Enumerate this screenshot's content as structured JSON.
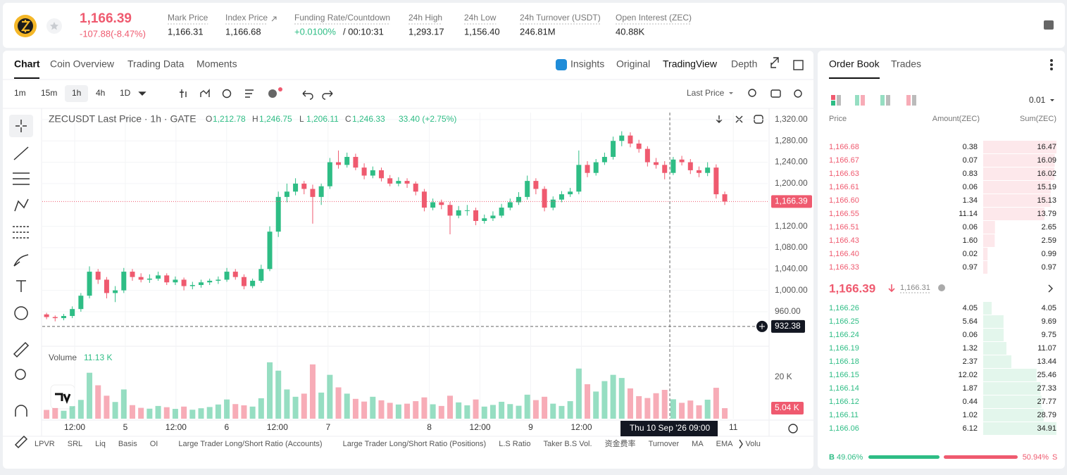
{
  "header": {
    "price": "1,166.39",
    "change": "-107.88(-8.47%)",
    "stats": [
      {
        "label": "Mark Price",
        "value": "1,166.31"
      },
      {
        "label": "Index Price",
        "value": "1,166.68"
      },
      {
        "label": "Funding Rate/Countdown",
        "value": "+0.0100%",
        "extra": "/ 00:10:31"
      },
      {
        "label": "24h High",
        "value": "1,293.17"
      },
      {
        "label": "24h Low",
        "value": "1,156.40"
      },
      {
        "label": "24h Turnover (USDT)",
        "value": "246.81M"
      },
      {
        "label": "Open Interest (ZEC)",
        "value": "40.88K"
      }
    ]
  },
  "tabs": [
    "Chart",
    "Coin Overview",
    "Trading Data",
    "Moments"
  ],
  "views": [
    "Insights",
    "Original",
    "TradingView",
    "Depth"
  ],
  "intervals": [
    "1m",
    "15m",
    "1h",
    "4h",
    "1D"
  ],
  "price_source": "Last Price",
  "legend": {
    "title": "ZECUSDT Last Price · 1h · GATE",
    "o_label": "O",
    "o": "1,212.78",
    "h_label": "H",
    "h": "1,246.75",
    "l_label": "L",
    "l": "1,206.11",
    "c_label": "C",
    "c": "1,246.33",
    "change": "33.40 (+2.75%)"
  },
  "volume_legend": {
    "label": "Volume",
    "value": "11.13 K"
  },
  "indicators": [
    "LPVR",
    "SRL",
    "Liq",
    "Basis",
    "OI",
    "Large Trader Long/Short Ratio (Accounts)",
    "Large Trader Long/Short Ratio (Positions)",
    "L.S Ratio",
    "Taker B.S Vol.",
    "资金费率",
    "Turnover",
    "MA",
    "EMA",
    "Volu"
  ],
  "chart_data": {
    "type": "candlestick",
    "ylim": [
      898,
      1333
    ],
    "yticks": [
      {
        "value": 1320,
        "label": "1,320.00"
      },
      {
        "value": 1280,
        "label": "1,280.00"
      },
      {
        "value": 1240,
        "label": "1,240.00"
      },
      {
        "value": 1200,
        "label": "1,200.00"
      },
      {
        "value": 1120,
        "label": "1,120.00"
      },
      {
        "value": 1080,
        "label": "1,080.00"
      },
      {
        "value": 1040,
        "label": "1,040.00"
      },
      {
        "value": 1000,
        "label": "1,000.00"
      },
      {
        "value": 960,
        "label": "960.00"
      }
    ],
    "xlim": [
      -0.5,
      84
    ],
    "xticks": [
      {
        "value": 3.28,
        "label": "12:00"
      },
      {
        "value": 9.18,
        "label": "5"
      },
      {
        "value": 15.08,
        "label": "12:00"
      },
      {
        "value": 20.98,
        "label": "6"
      },
      {
        "value": 26.89,
        "label": "12:00"
      },
      {
        "value": 32.79,
        "label": "7"
      },
      {
        "value": 44.59,
        "label": "8"
      },
      {
        "value": 50.49,
        "label": "12:00"
      },
      {
        "value": 56.39,
        "label": "9"
      },
      {
        "value": 62.3,
        "label": "12:00"
      },
      {
        "value": 80.0,
        "label": "11"
      }
    ],
    "last_price": {
      "value": 1166.39,
      "label": "1,166.39"
    },
    "crosshair": {
      "x": 72.6,
      "x_label": "Thu 10 Sep '26   09:00",
      "y": 932.38,
      "y_label": "932.38"
    },
    "up_color": "#2ebd85",
    "down_color": "#ef5a6f",
    "candles": [
      [
        955,
        958,
        946,
        950
      ],
      [
        950,
        953,
        942,
        948
      ],
      [
        948,
        956,
        944,
        952
      ],
      [
        952,
        970,
        948,
        965
      ],
      [
        965,
        995,
        960,
        990
      ],
      [
        990,
        1045,
        985,
        1035
      ],
      [
        1035,
        1040,
        1012,
        1020
      ],
      [
        1020,
        1025,
        985,
        995
      ],
      [
        995,
        1008,
        978,
        1000
      ],
      [
        1000,
        1042,
        995,
        1035
      ],
      [
        1035,
        1040,
        1018,
        1025
      ],
      [
        1025,
        1032,
        1015,
        1020
      ],
      [
        1020,
        1030,
        1014,
        1022
      ],
      [
        1022,
        1035,
        1018,
        1028
      ],
      [
        1028,
        1032,
        1010,
        1015
      ],
      [
        1015,
        1026,
        1010,
        1020
      ],
      [
        1020,
        1024,
        1000,
        1008
      ],
      [
        1008,
        1016,
        1002,
        1010
      ],
      [
        1010,
        1020,
        1005,
        1015
      ],
      [
        1015,
        1022,
        1010,
        1018
      ],
      [
        1018,
        1026,
        1012,
        1020
      ],
      [
        1020,
        1042,
        1016,
        1035
      ],
      [
        1035,
        1040,
        1020,
        1025
      ],
      [
        1025,
        1030,
        1002,
        1008
      ],
      [
        1008,
        1022,
        1004,
        1018
      ],
      [
        1018,
        1048,
        1014,
        1040
      ],
      [
        1040,
        1120,
        1036,
        1110
      ],
      [
        1110,
        1185,
        1100,
        1175
      ],
      [
        1175,
        1200,
        1165,
        1185
      ],
      [
        1185,
        1210,
        1178,
        1200
      ],
      [
        1200,
        1205,
        1180,
        1190
      ],
      [
        1190,
        1198,
        1125,
        1175
      ],
      [
        1175,
        1200,
        1160,
        1195
      ],
      [
        1195,
        1248,
        1190,
        1240
      ],
      [
        1240,
        1262,
        1228,
        1235
      ],
      [
        1235,
        1258,
        1230,
        1250
      ],
      [
        1250,
        1256,
        1225,
        1230
      ],
      [
        1230,
        1238,
        1208,
        1215
      ],
      [
        1215,
        1232,
        1210,
        1225
      ],
      [
        1225,
        1230,
        1204,
        1210
      ],
      [
        1210,
        1216,
        1195,
        1200
      ],
      [
        1200,
        1212,
        1195,
        1205
      ],
      [
        1205,
        1210,
        1192,
        1200
      ],
      [
        1200,
        1204,
        1178,
        1185
      ],
      [
        1185,
        1190,
        1148,
        1155
      ],
      [
        1155,
        1172,
        1150,
        1165
      ],
      [
        1165,
        1170,
        1152,
        1160
      ],
      [
        1160,
        1166,
        1105,
        1140
      ],
      [
        1140,
        1158,
        1135,
        1150
      ],
      [
        1150,
        1160,
        1140,
        1150
      ],
      [
        1150,
        1155,
        1122,
        1130
      ],
      [
        1130,
        1142,
        1125,
        1135
      ],
      [
        1135,
        1148,
        1130,
        1140
      ],
      [
        1140,
        1162,
        1136,
        1155
      ],
      [
        1155,
        1172,
        1150,
        1165
      ],
      [
        1165,
        1184,
        1160,
        1175
      ],
      [
        1175,
        1215,
        1170,
        1205
      ],
      [
        1205,
        1210,
        1180,
        1190
      ],
      [
        1190,
        1195,
        1148,
        1155
      ],
      [
        1155,
        1176,
        1150,
        1170
      ],
      [
        1170,
        1186,
        1165,
        1180
      ],
      [
        1180,
        1192,
        1175,
        1185
      ],
      [
        1185,
        1262,
        1180,
        1235
      ],
      [
        1235,
        1242,
        1212,
        1220
      ],
      [
        1220,
        1246,
        1215,
        1240
      ],
      [
        1240,
        1258,
        1235,
        1250
      ],
      [
        1250,
        1288,
        1245,
        1280
      ],
      [
        1280,
        1298,
        1270,
        1290
      ],
      [
        1290,
        1296,
        1268,
        1275
      ],
      [
        1275,
        1282,
        1258,
        1265
      ],
      [
        1265,
        1270,
        1232,
        1240
      ],
      [
        1240,
        1248,
        1228,
        1235
      ],
      [
        1235,
        1242,
        1208,
        1220
      ],
      [
        1220,
        1250,
        1216,
        1245
      ],
      [
        1245,
        1252,
        1234,
        1240
      ],
      [
        1240,
        1246,
        1218,
        1225
      ],
      [
        1225,
        1232,
        1212,
        1220
      ],
      [
        1220,
        1240,
        1214,
        1230
      ],
      [
        1230,
        1236,
        1172,
        1180
      ],
      [
        1180,
        1185,
        1160,
        1166.39
      ]
    ],
    "volume": [
      4200,
      5100,
      3800,
      6000,
      9000,
      22000,
      16000,
      11000,
      8000,
      14000,
      6500,
      5200,
      4800,
      6100,
      5500,
      4700,
      5800,
      4300,
      5000,
      5600,
      6800,
      9200,
      7000,
      6400,
      5800,
      9800,
      27000,
      23000,
      14000,
      10500,
      12000,
      26000,
      12500,
      21000,
      15000,
      12000,
      9500,
      8200,
      10500,
      8800,
      7600,
      6800,
      7200,
      8400,
      10200,
      6900,
      6100,
      11000,
      7800,
      6400,
      9200,
      5800,
      6600,
      8100,
      7000,
      6200,
      11500,
      8900,
      10500,
      7200,
      6100,
      8400,
      24000,
      16500,
      13000,
      18000,
      21000,
      19500,
      14500,
      10800,
      9900,
      12200,
      13800,
      9300,
      7600,
      8700,
      6400,
      9100,
      14800,
      5040
    ],
    "vlim": [
      0,
      32000
    ],
    "vticks": [
      {
        "value": 20000,
        "label": "20 K"
      }
    ],
    "last_volume": {
      "value": 5040,
      "label": "5.04 K"
    }
  },
  "order_book": {
    "tabs": [
      "Order Book",
      "Trades"
    ],
    "precision": "0.01",
    "headers": [
      "Price",
      "Amount(ZEC)",
      "Sum(ZEC)"
    ],
    "asks": [
      [
        "1,166.68",
        "0.38",
        16.47
      ],
      [
        "1,166.67",
        "0.07",
        16.09
      ],
      [
        "1,166.63",
        "0.83",
        16.02
      ],
      [
        "1,166.61",
        "0.06",
        15.19
      ],
      [
        "1,166.60",
        "1.34",
        15.13
      ],
      [
        "1,166.55",
        "11.14",
        13.79
      ],
      [
        "1,166.51",
        "0.06",
        2.65
      ],
      [
        "1,166.43",
        "1.60",
        2.59
      ],
      [
        "1,166.40",
        "0.02",
        0.99
      ],
      [
        "1,166.33",
        "0.97",
        0.97
      ]
    ],
    "mid_price": "1,166.39",
    "mark_price": "1,166.31",
    "bids": [
      [
        "1,166.26",
        "4.05",
        4.05
      ],
      [
        "1,166.25",
        "5.64",
        9.69
      ],
      [
        "1,166.24",
        "0.06",
        9.75
      ],
      [
        "1,166.19",
        "1.32",
        11.07
      ],
      [
        "1,166.18",
        "2.37",
        13.44
      ],
      [
        "1,166.15",
        "12.02",
        25.46
      ],
      [
        "1,166.14",
        "1.87",
        27.33
      ],
      [
        "1,166.12",
        "0.44",
        27.77
      ],
      [
        "1,166.11",
        "1.02",
        28.79
      ],
      [
        "1,166.06",
        "6.12",
        34.91
      ]
    ],
    "buy_label": "B",
    "buy": {
      "value": 49.06,
      "label": "49.06%"
    },
    "sell": {
      "value": 50.94,
      "label": "50.94%"
    },
    "sell_label": "S"
  }
}
